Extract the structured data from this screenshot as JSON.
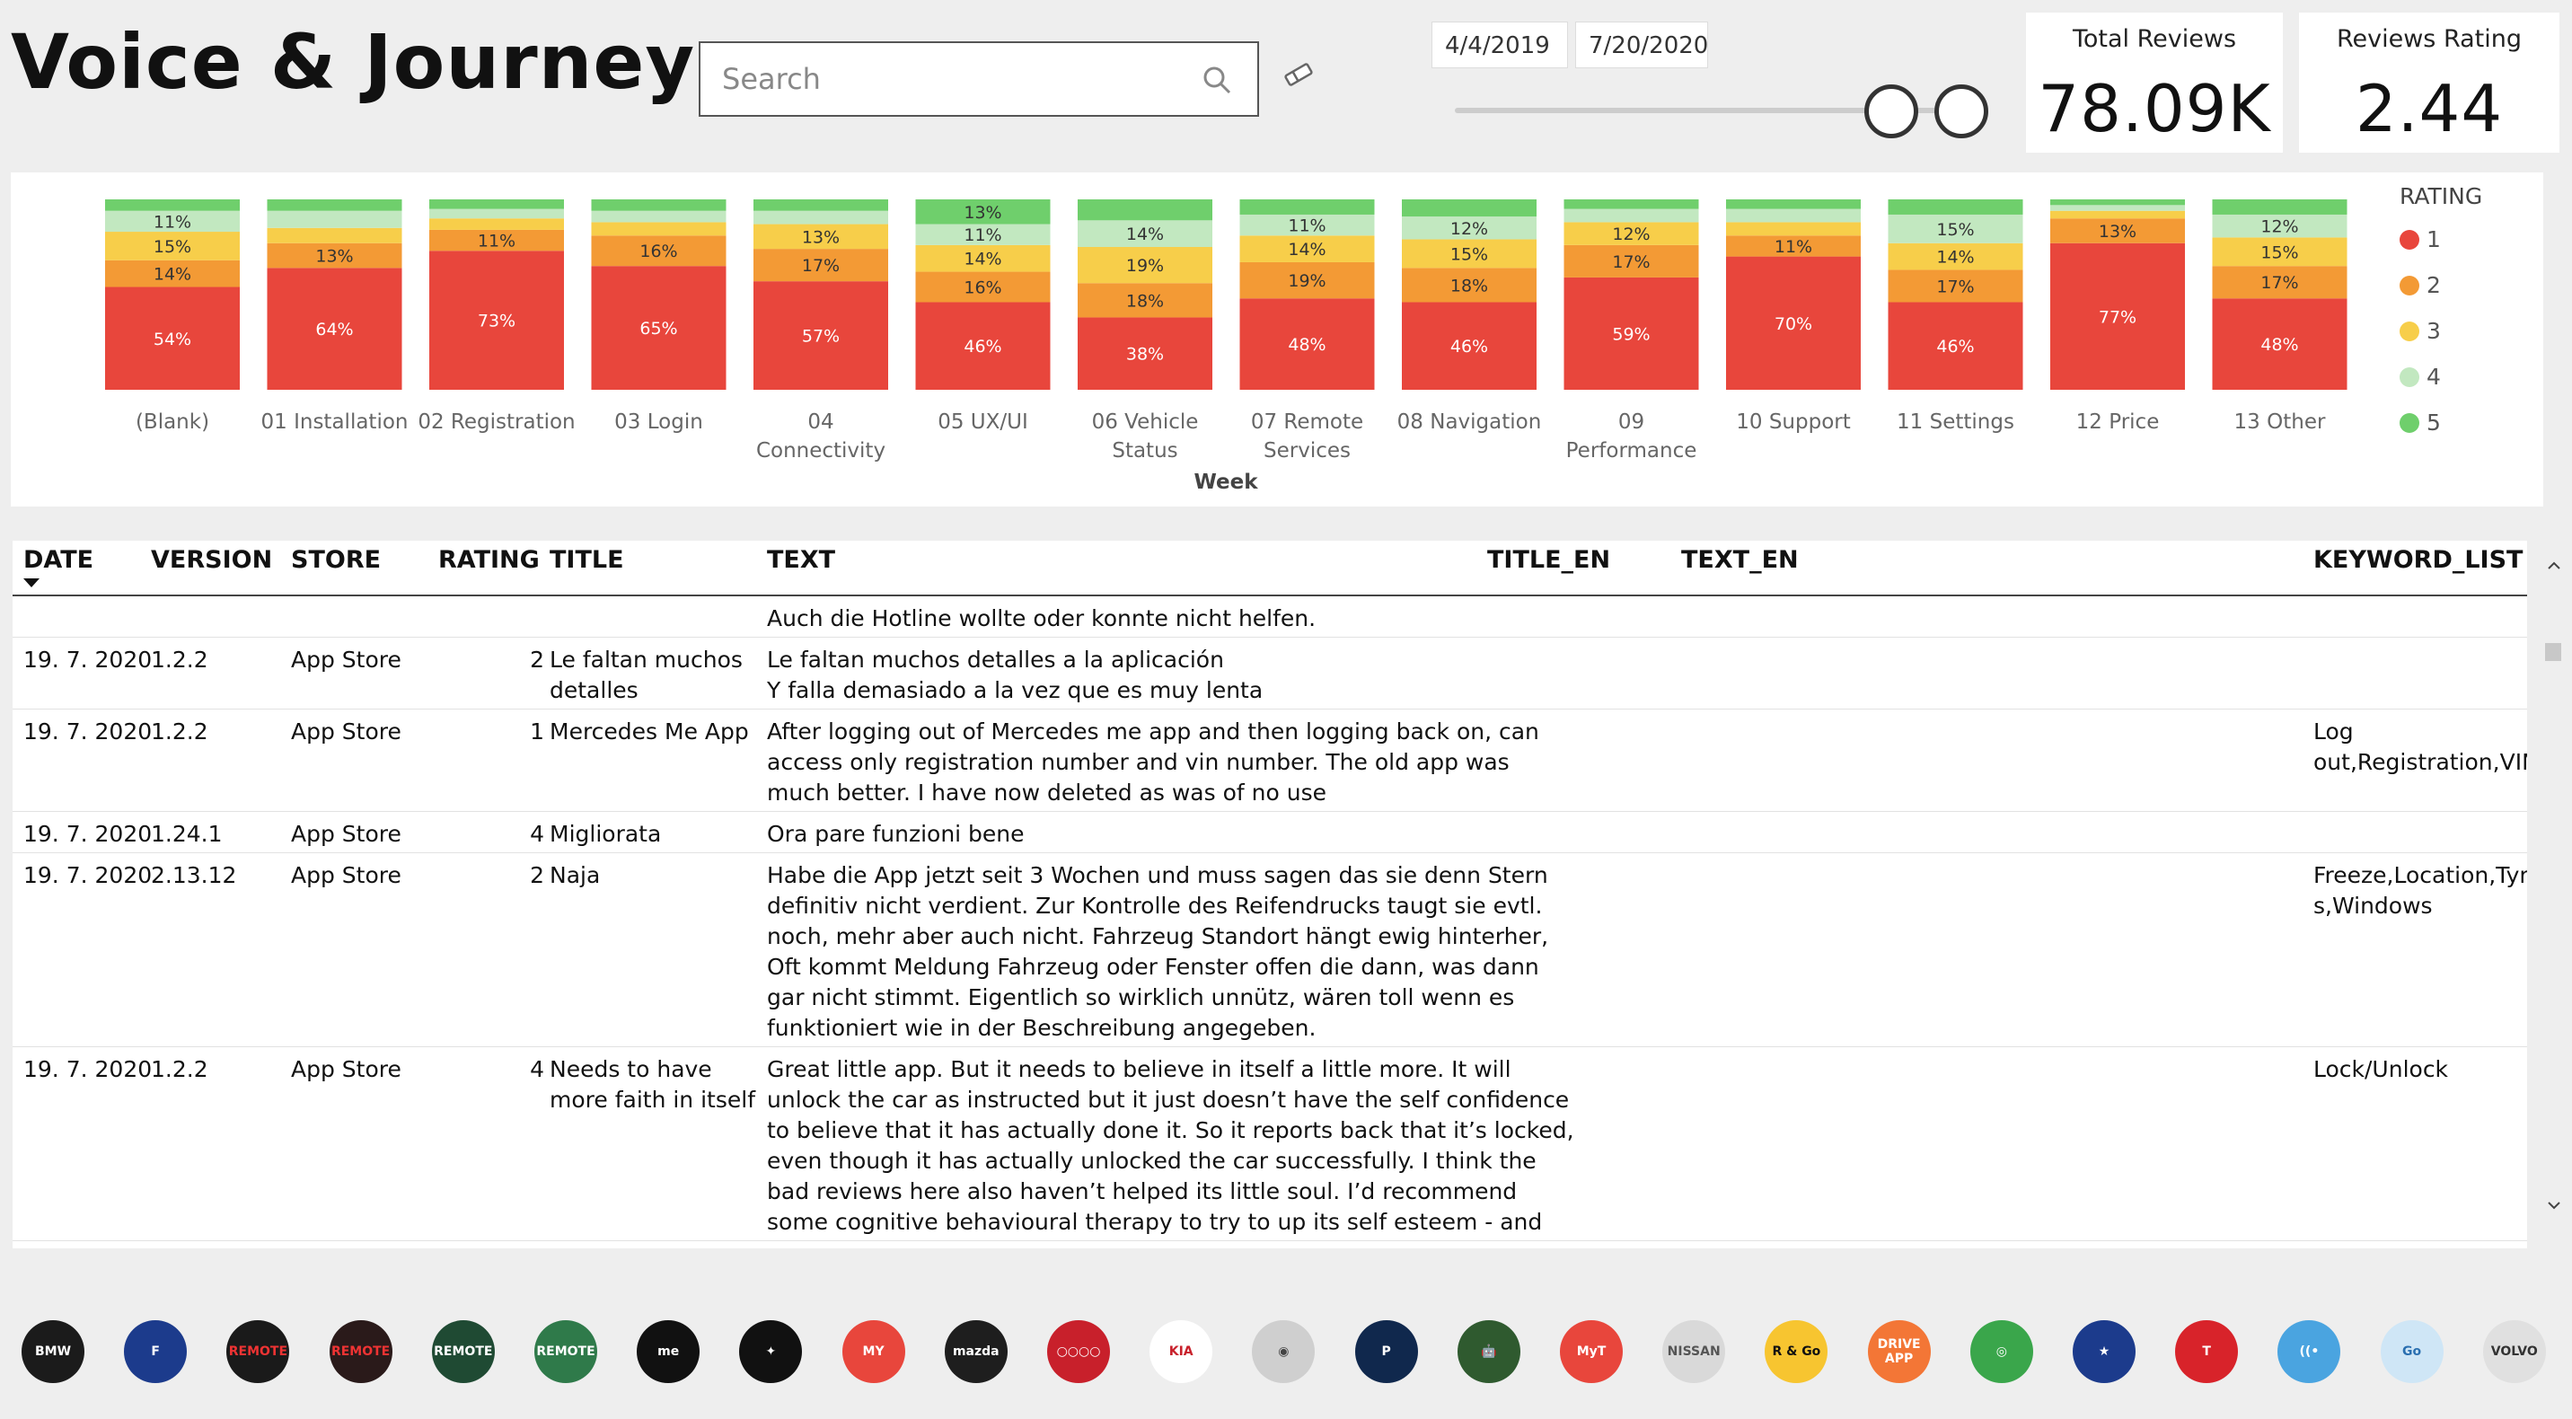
{
  "title": "Voice & Journey",
  "search": {
    "placeholder": "Search"
  },
  "date_range": {
    "start": "4/4/2019",
    "end": "7/20/2020"
  },
  "kpis": {
    "total_reviews": {
      "label": "Total Reviews",
      "value": "78.09K"
    },
    "reviews_rating": {
      "label": "Reviews Rating",
      "value": "2.44"
    }
  },
  "colors": {
    "r1": "#e8463c",
    "r2": "#f39a35",
    "r3": "#f7ce4a",
    "r4": "#c2e8c0",
    "r5": "#6fcf6c"
  },
  "chart_data": {
    "type": "bar",
    "stacked": true,
    "percent": true,
    "xlabel": "Week",
    "legend_title": "RATING",
    "legend_position": "right",
    "categories": [
      "(Blank)",
      "01 Installation",
      "02 Registration",
      "03 Login",
      "04 Connectivity",
      "05 UX/UI",
      "06 Vehicle Status",
      "07 Remote Services",
      "08 Navigation",
      "09 Performance",
      "10 Support",
      "11 Settings",
      "12 Price",
      "13 Other"
    ],
    "category_labels": [
      [
        "(Blank)"
      ],
      [
        "01 Installation"
      ],
      [
        "02 Registration"
      ],
      [
        "03 Login"
      ],
      [
        "04",
        "Connectivity"
      ],
      [
        "05 UX/UI"
      ],
      [
        "06 Vehicle",
        "Status"
      ],
      [
        "07 Remote",
        "Services"
      ],
      [
        "08 Navigation"
      ],
      [
        "09",
        "Performance"
      ],
      [
        "10 Support"
      ],
      [
        "11 Settings"
      ],
      [
        "12 Price"
      ],
      [
        "13 Other"
      ]
    ],
    "series": [
      {
        "name": "1",
        "values": [
          54,
          64,
          73,
          65,
          57,
          46,
          38,
          48,
          46,
          59,
          70,
          46,
          77,
          48
        ]
      },
      {
        "name": "2",
        "values": [
          14,
          13,
          11,
          16,
          17,
          16,
          18,
          19,
          18,
          17,
          11,
          17,
          13,
          17
        ]
      },
      {
        "name": "3",
        "values": [
          15,
          8,
          6,
          7,
          13,
          14,
          19,
          14,
          15,
          12,
          7,
          14,
          4,
          15
        ]
      },
      {
        "name": "4",
        "values": [
          11,
          9,
          5,
          6,
          7,
          11,
          14,
          11,
          12,
          7,
          7,
          15,
          3,
          12
        ]
      },
      {
        "name": "5",
        "values": [
          6,
          6,
          5,
          6,
          6,
          13,
          11,
          8,
          9,
          5,
          5,
          8,
          3,
          8
        ]
      }
    ],
    "labels": [
      [
        "54%",
        "14%",
        "15%",
        "11%",
        ""
      ],
      [
        "64%",
        "13%",
        "",
        "",
        ""
      ],
      [
        "73%",
        "11%",
        "",
        "",
        ""
      ],
      [
        "65%",
        "16%",
        "",
        "",
        ""
      ],
      [
        "57%",
        "17%",
        "13%",
        "",
        ""
      ],
      [
        "46%",
        "16%",
        "14%",
        "11%",
        "13%"
      ],
      [
        "38%",
        "18%",
        "19%",
        "14%",
        ""
      ],
      [
        "48%",
        "19%",
        "14%",
        "11%",
        ""
      ],
      [
        "46%",
        "18%",
        "15%",
        "12%",
        ""
      ],
      [
        "59%",
        "17%",
        "12%",
        "",
        ""
      ],
      [
        "70%",
        "11%",
        "",
        "",
        ""
      ],
      [
        "46%",
        "17%",
        "14%",
        "15%",
        ""
      ],
      [
        "77%",
        "13%",
        "",
        "",
        ""
      ],
      [
        "48%",
        "17%",
        "15%",
        "12%",
        ""
      ]
    ]
  },
  "table": {
    "columns": [
      "DATE",
      "VERSION",
      "STORE",
      "RATING",
      "TITLE",
      "TEXT",
      "TITLE_EN",
      "TEXT_EN",
      "KEYWORD_LIST"
    ],
    "partial_row_text": "Auch die Hotline wollte oder konnte nicht helfen.",
    "rows": [
      {
        "date": "19. 7. 2020",
        "version": "1.2.2",
        "store": "App Store",
        "rating": "2",
        "title": [
          "Le faltan muchos",
          "detalles"
        ],
        "text": [
          "Le faltan muchos detalles a la aplicación",
          "Y falla demasiado a la vez que es muy lenta"
        ],
        "keywords": []
      },
      {
        "date": "19. 7. 2020",
        "version": "1.2.2",
        "store": "App Store",
        "rating": "1",
        "title": [
          "Mercedes Me App"
        ],
        "text": [
          "After logging out of Mercedes me app and then logging back on, can",
          "access only registration number and vin number. The old app was",
          "much better. I have now deleted as was of no use"
        ],
        "keywords": [
          "Log",
          "out,Registration,VIN"
        ]
      },
      {
        "date": "19. 7. 2020",
        "version": "1.24.1",
        "store": "App Store",
        "rating": "4",
        "title": [
          "Migliorata"
        ],
        "text": [
          "Ora pare funzioni bene"
        ],
        "keywords": []
      },
      {
        "date": "19. 7. 2020",
        "version": "2.13.12",
        "store": "App Store",
        "rating": "2",
        "title": [
          "Naja"
        ],
        "text": [
          "Habe die App jetzt seit 3 Wochen und muss sagen das sie denn Stern",
          "definitiv nicht verdient. Zur Kontrolle des Reifendrucks taugt sie evtl.",
          "noch, mehr aber auch nicht. Fahrzeug Standort hängt ewig hinterher,",
          "Oft kommt Meldung Fahrzeug oder Fenster offen die dann, was dann",
          "gar nicht stimmt. Eigentlich so wirklich unnütz, wären toll wenn es",
          "funktioniert wie in der Beschreibung angegeben."
        ],
        "keywords": [
          "Freeze,Location,Tyre",
          "s,Windows"
        ]
      },
      {
        "date": "19. 7. 2020",
        "version": "1.2.2",
        "store": "App Store",
        "rating": "4",
        "title": [
          "Needs to have",
          "more faith in itself"
        ],
        "text": [
          "Great little app. But it needs to believe in itself a little more. It will",
          "unlock the car as instructed but it just doesn’t have the self confidence",
          "to believe that it has actually done it. So it reports back that it’s locked,",
          "even though it has actually unlocked the car successfully. I think the",
          "bad reviews here also haven’t helped its little soul. I’d recommend",
          "some cognitive behavioural therapy to try to up its self esteem - and"
        ],
        "keywords": [
          "Lock/Unlock"
        ]
      }
    ]
  },
  "logos": [
    {
      "name": "bmw",
      "label": "BMW",
      "bg": "#1b1b1b",
      "fg": "#ffffff"
    },
    {
      "name": "ford",
      "label": "F",
      "bg": "#1c3b8c",
      "fg": "#ffffff"
    },
    {
      "name": "jaguar-remote",
      "label": "REMOTE",
      "bg": "#1a1a1a",
      "fg": "#e33"
    },
    {
      "name": "jaguar-remote-2",
      "label": "REMOTE",
      "bg": "#2a1a1a",
      "fg": "#e33"
    },
    {
      "name": "land-rover-remote",
      "label": "REMOTE",
      "bg": "#1f4a33",
      "fg": "#ffffff"
    },
    {
      "name": "land-rover-remote-2",
      "label": "REMOTE",
      "bg": "#2f7a4a",
      "fg": "#ffffff"
    },
    {
      "name": "mercedes-me",
      "label": "me",
      "bg": "#111111",
      "fg": "#ffffff"
    },
    {
      "name": "mercedes",
      "label": "✦",
      "bg": "#111111",
      "fg": "#ffffff"
    },
    {
      "name": "my",
      "label": "MY",
      "bg": "#e8463c",
      "fg": "#ffffff"
    },
    {
      "name": "mazda",
      "label": "mazda",
      "bg": "#1e1e1e",
      "fg": "#ffffff"
    },
    {
      "name": "audi",
      "label": "○○○○",
      "bg": "#c8202b",
      "fg": "#ffffff"
    },
    {
      "name": "kia",
      "label": "KIA",
      "bg": "#ffffff",
      "fg": "#c8202b"
    },
    {
      "name": "citroen",
      "label": "◉",
      "bg": "#cfcfcf",
      "fg": "#444"
    },
    {
      "name": "peugeot",
      "label": "P",
      "bg": "#10284d",
      "fg": "#ffffff"
    },
    {
      "name": "android",
      "label": "🤖",
      "bg": "#2f5a2f",
      "fg": "#9ad15a"
    },
    {
      "name": "my-toyota",
      "label": "MyT",
      "bg": "#e8463c",
      "fg": "#ffffff"
    },
    {
      "name": "nissan",
      "label": "NISSAN",
      "bg": "#d9d9d9",
      "fg": "#555"
    },
    {
      "name": "renault-rgo",
      "label": "R & Go",
      "bg": "#f7c530",
      "fg": "#111"
    },
    {
      "name": "seat-drive",
      "label": "DRIVE APP",
      "bg": "#f37636",
      "fg": "#ffffff"
    },
    {
      "name": "connect",
      "label": "◎",
      "bg": "#3aa64b",
      "fg": "#ffffff"
    },
    {
      "name": "subaru",
      "label": "★",
      "bg": "#1c3b8c",
      "fg": "#ffffff"
    },
    {
      "name": "tesla",
      "label": "T",
      "bg": "#d8232a",
      "fg": "#ffffff"
    },
    {
      "name": "volvo-on-call",
      "label": "((•",
      "bg": "#4aa4e0",
      "fg": "#ffffff"
    },
    {
      "name": "vw-go",
      "label": "Go",
      "bg": "#cfe6f6",
      "fg": "#2a6fb0"
    },
    {
      "name": "volvo",
      "label": "VOLVO",
      "bg": "#e0e0e0",
      "fg": "#333"
    }
  ]
}
